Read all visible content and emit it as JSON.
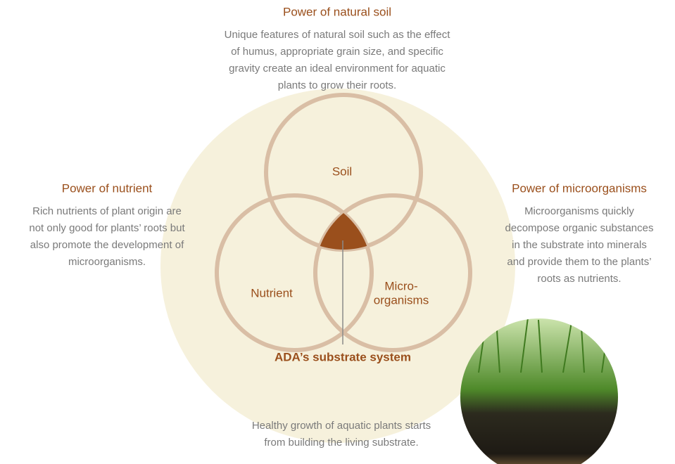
{
  "top": {
    "title": "Power of natural soil",
    "lines": [
      "Unique features of natural soil such as the effect",
      "of humus, appropriate grain size, and specific",
      "gravity create an ideal environment for aquatic",
      "plants to grow their roots."
    ]
  },
  "left": {
    "title": "Power of nutrient",
    "lines": [
      "Rich nutrients of plant origin are",
      "not only good for plants’ roots but",
      "also promote the development of",
      "microorganisms."
    ]
  },
  "right": {
    "title": "Power of microorganisms",
    "lines": [
      "Microorganisms quickly",
      "decompose organic substances",
      "in the substrate into minerals",
      "and provide them to the plants’",
      "roots as nutrients."
    ]
  },
  "circles": {
    "soil": "Soil",
    "nutrient": "Nutrient",
    "micro": [
      "Micro-",
      "organisms"
    ]
  },
  "center_label": "ADA’s substrate system",
  "bottom": {
    "lines": [
      "Healthy growth of aquatic plants starts",
      "from building the living substrate."
    ]
  }
}
